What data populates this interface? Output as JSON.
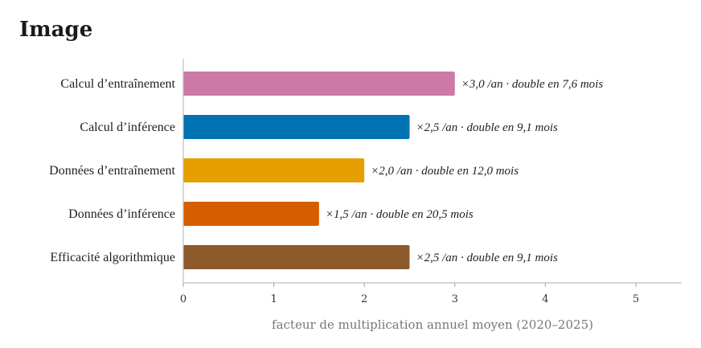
{
  "page": {
    "title": "Image"
  },
  "chart_data": {
    "type": "bar",
    "orientation": "horizontal",
    "title": "",
    "xlabel": "facteur de multiplication annuel moyen (2020–2025)",
    "ylabel": "",
    "xlim": [
      0,
      5.5
    ],
    "xticks": [
      0,
      1,
      2,
      3,
      4,
      5
    ],
    "xtick_labels": [
      "0",
      "1",
      "2",
      "3",
      "4",
      "5"
    ],
    "grid": false,
    "categories": [
      "Calcul d’entraînement",
      "Calcul d’inférence",
      "Données d’entraînement",
      "Données d’inférence",
      "Efficacité algorithmique"
    ],
    "values": [
      3.0,
      2.5,
      2.0,
      1.5,
      2.5
    ],
    "data_labels": [
      "×3,0 /an · double en 7,6 mois",
      "×2,5 /an · double en 9,1 mois",
      "×2,0 /an · double en 12,0 mois",
      "×1,5 /an · double en 20,5 mois",
      "×2,5 /an · double en 9,1 mois"
    ],
    "colors": [
      "#cc79a7",
      "#0072b2",
      "#e69f00",
      "#d55e00",
      "#8c5a2b"
    ]
  }
}
